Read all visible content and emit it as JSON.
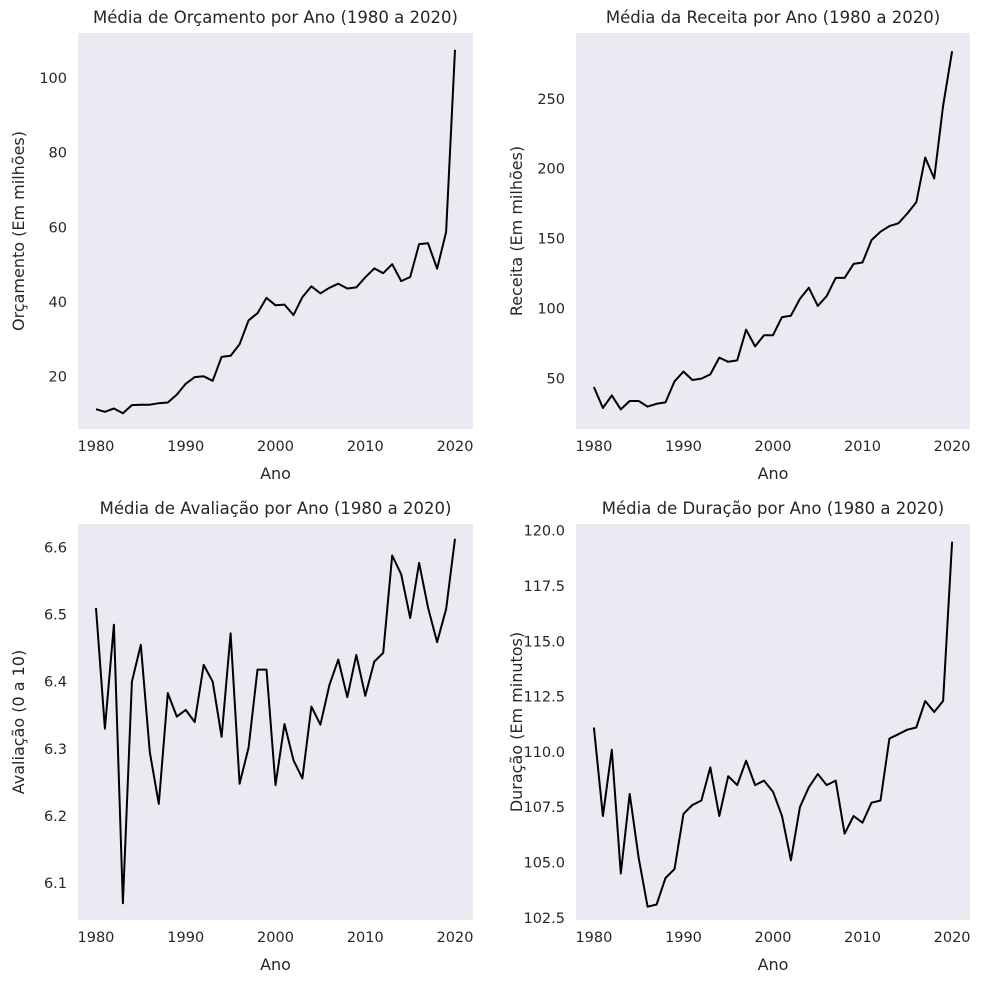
{
  "chart_data": [
    {
      "type": "line",
      "title": "Média de Orçamento por Ano (1980 a 2020)",
      "xlabel": "Ano",
      "ylabel": "Orçamento (Em milhões)",
      "xlim": [
        1978,
        2022
      ],
      "ylim": [
        6.0,
        112.0
      ],
      "xticks": [
        "1980",
        "1990",
        "2000",
        "2010",
        "2020"
      ],
      "yticks": [
        "20",
        "40",
        "60",
        "80",
        "100"
      ],
      "grid": false,
      "colors": {
        "line": "#000000",
        "plot_background": "#eaeaf2"
      },
      "series": [
        {
          "x": [
            1980,
            1981,
            1982,
            1983,
            1984,
            1985,
            1986,
            1987,
            1988,
            1989,
            1990,
            1991,
            1992,
            1993,
            1994,
            1995,
            1996,
            1997,
            1998,
            1999,
            2000,
            2001,
            2002,
            2003,
            2004,
            2005,
            2006,
            2007,
            2008,
            2009,
            2010,
            2011,
            2012,
            2013,
            2014,
            2015,
            2016,
            2017,
            2018,
            2019,
            2020
          ],
          "y": [
            11.3,
            10.6,
            11.5,
            10.2,
            12.4,
            12.5,
            12.5,
            12.9,
            13.1,
            15.2,
            18.1,
            19.9,
            20.1,
            18.9,
            25.3,
            25.6,
            28.7,
            35.1,
            37.0,
            41.1,
            39.1,
            39.3,
            36.5,
            41.3,
            44.2,
            42.3,
            43.8,
            44.9,
            43.6,
            43.9,
            46.6,
            49.0,
            47.7,
            50.1,
            45.6,
            46.7,
            55.5,
            55.7,
            48.9,
            58.7,
            107.5
          ]
        }
      ]
    },
    {
      "type": "line",
      "title": "Média da Receita por Ano (1980 a 2020)",
      "xlabel": "Ano",
      "ylabel": "Receita (Em milhões)",
      "xlim": [
        1978,
        2022
      ],
      "ylim": [
        14.0,
        297.0
      ],
      "xticks": [
        "1980",
        "1990",
        "2000",
        "2010",
        "2020"
      ],
      "yticks": [
        "50",
        "100",
        "150",
        "200",
        "250"
      ],
      "grid": false,
      "colors": {
        "line": "#000000",
        "plot_background": "#eaeaf2"
      },
      "series": [
        {
          "x": [
            1980,
            1981,
            1982,
            1983,
            1984,
            1985,
            1986,
            1987,
            1988,
            1989,
            1990,
            1991,
            1992,
            1993,
            1994,
            1995,
            1996,
            1997,
            1998,
            1999,
            2000,
            2001,
            2002,
            2003,
            2004,
            2005,
            2006,
            2007,
            2008,
            2009,
            2010,
            2011,
            2012,
            2013,
            2014,
            2015,
            2016,
            2017,
            2018,
            2019,
            2020
          ],
          "y": [
            44,
            29,
            38,
            28,
            34,
            34,
            30,
            32,
            33,
            48,
            55,
            49,
            50,
            53,
            65,
            62,
            63,
            85,
            73,
            81,
            81,
            94,
            95,
            107,
            115,
            102,
            109,
            122,
            122,
            132,
            133,
            149,
            155,
            159,
            161,
            168,
            176,
            208,
            193,
            245,
            284
          ]
        }
      ]
    },
    {
      "type": "line",
      "title": "Média de Avaliação por Ano (1980 a 2020)",
      "xlabel": "Ano",
      "ylabel": "Avaliação (0 a 10)",
      "xlim": [
        1978,
        2022
      ],
      "ylim": [
        6.045,
        6.635
      ],
      "xticks": [
        "1980",
        "1990",
        "2000",
        "2010",
        "2020"
      ],
      "yticks": [
        "6.1",
        "6.2",
        "6.3",
        "6.4",
        "6.5",
        "6.6"
      ],
      "grid": false,
      "colors": {
        "line": "#000000",
        "plot_background": "#eaeaf2"
      },
      "series": [
        {
          "x": [
            1980,
            1981,
            1982,
            1983,
            1984,
            1985,
            1986,
            1987,
            1988,
            1989,
            1990,
            1991,
            1992,
            1993,
            1994,
            1995,
            1996,
            1997,
            1998,
            1999,
            2000,
            2001,
            2002,
            2003,
            2004,
            2005,
            2006,
            2007,
            2008,
            2009,
            2010,
            2011,
            2012,
            2013,
            2014,
            2015,
            2016,
            2017,
            2018,
            2019,
            2020
          ],
          "y": [
            6.51,
            6.33,
            6.485,
            6.07,
            6.4,
            6.455,
            6.295,
            6.218,
            6.383,
            6.348,
            6.358,
            6.34,
            6.425,
            6.4,
            6.318,
            6.472,
            6.248,
            6.302,
            6.418,
            6.418,
            6.246,
            6.337,
            6.283,
            6.256,
            6.363,
            6.336,
            6.395,
            6.433,
            6.377,
            6.44,
            6.379,
            6.43,
            6.443,
            6.588,
            6.56,
            6.495,
            6.577,
            6.51,
            6.459,
            6.508,
            6.613
          ]
        }
      ]
    },
    {
      "type": "line",
      "title": "Média de Duração por Ano (1980 a 2020)",
      "xlabel": "Ano",
      "ylabel": "Duração (Em minutos)",
      "xlim": [
        1978,
        2022
      ],
      "ylim": [
        102.4,
        120.3
      ],
      "xticks": [
        "1980",
        "1990",
        "2000",
        "2010",
        "2020"
      ],
      "yticks": [
        "102.5",
        "105.0",
        "107.5",
        "110.0",
        "112.5",
        "115.0",
        "117.5",
        "120.0"
      ],
      "grid": false,
      "colors": {
        "line": "#000000",
        "plot_background": "#eaeaf2"
      },
      "series": [
        {
          "x": [
            1980,
            1981,
            1982,
            1983,
            1984,
            1985,
            1986,
            1987,
            1988,
            1989,
            1990,
            1991,
            1992,
            1993,
            1994,
            1995,
            1996,
            1997,
            1998,
            1999,
            2000,
            2001,
            2002,
            2003,
            2004,
            2005,
            2006,
            2007,
            2008,
            2009,
            2010,
            2011,
            2012,
            2013,
            2014,
            2015,
            2016,
            2017,
            2018,
            2019,
            2020
          ],
          "y": [
            111.1,
            107.1,
            110.1,
            104.5,
            108.1,
            105.2,
            103.0,
            103.1,
            104.3,
            104.7,
            107.2,
            107.6,
            107.8,
            109.3,
            107.1,
            108.9,
            108.5,
            109.6,
            108.5,
            108.7,
            108.2,
            107.1,
            105.1,
            107.5,
            108.4,
            109.0,
            108.5,
            108.7,
            106.3,
            107.1,
            106.8,
            107.7,
            107.8,
            110.6,
            110.8,
            111.0,
            111.1,
            112.3,
            111.8,
            112.3,
            119.5
          ]
        }
      ]
    }
  ]
}
